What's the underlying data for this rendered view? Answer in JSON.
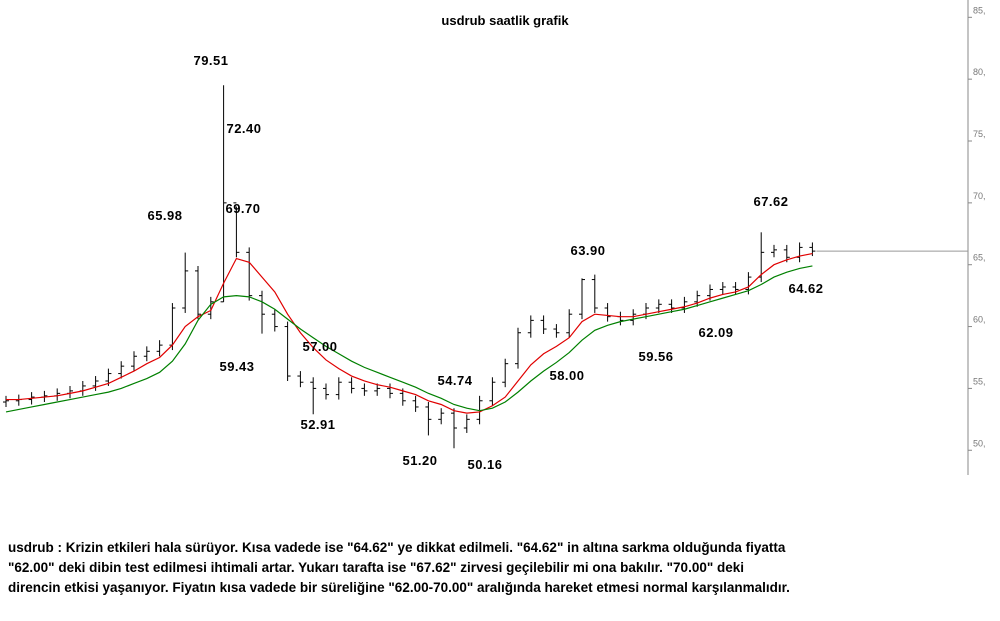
{
  "chart_data": {
    "type": "ohlc",
    "title": "usdrub saatlik grafik",
    "open": [
      53.9,
      54.0,
      54.1,
      54.3,
      54.4,
      54.6,
      54.8,
      55.2,
      55.6,
      56.2,
      56.8,
      57.6,
      58.0,
      58.5,
      61.5,
      64.5,
      61.0,
      62.0,
      70.0,
      66.0,
      62.5,
      61.0,
      60.0,
      56.0,
      55.5,
      55.0,
      54.5,
      55.5,
      55.0,
      54.8,
      55.0,
      54.6,
      54.0,
      53.5,
      52.5,
      53.0,
      51.8,
      52.5,
      54.0,
      55.5,
      57.0,
      59.5,
      60.5,
      59.8,
      59.5,
      61.0,
      63.8,
      61.5,
      60.8,
      60.5,
      61.0,
      61.5,
      61.8,
      61.5,
      62.0,
      62.5,
      63.0,
      63.2,
      63.0,
      64.0,
      66.0,
      66.2,
      65.6,
      66.4
    ],
    "high": [
      54.4,
      54.5,
      54.7,
      54.8,
      55.0,
      55.2,
      55.6,
      56.0,
      56.6,
      57.2,
      58.0,
      58.4,
      58.9,
      61.9,
      65.98,
      64.9,
      62.4,
      79.51,
      69.7,
      66.4,
      62.9,
      61.4,
      60.4,
      56.4,
      55.9,
      55.4,
      55.9,
      55.9,
      55.4,
      55.4,
      55.4,
      55.0,
      54.4,
      53.9,
      53.4,
      53.4,
      52.9,
      54.4,
      55.9,
      57.4,
      59.9,
      60.9,
      60.9,
      60.2,
      61.4,
      63.9,
      64.2,
      61.9,
      61.2,
      61.4,
      61.9,
      62.2,
      62.2,
      62.4,
      62.9,
      63.4,
      63.6,
      63.6,
      64.4,
      67.62,
      66.6,
      66.6,
      66.8,
      66.8
    ],
    "low": [
      53.5,
      53.6,
      53.7,
      53.9,
      54.0,
      54.2,
      54.4,
      54.8,
      55.2,
      55.8,
      56.4,
      57.2,
      57.6,
      58.1,
      61.1,
      60.6,
      60.6,
      62.0,
      65.6,
      62.1,
      59.43,
      59.6,
      55.6,
      55.1,
      52.91,
      54.1,
      54.1,
      54.6,
      54.4,
      54.4,
      54.2,
      53.6,
      53.1,
      51.2,
      52.1,
      50.16,
      51.4,
      52.1,
      53.6,
      55.1,
      56.6,
      59.1,
      59.4,
      59.1,
      59.1,
      60.6,
      61.1,
      60.4,
      60.1,
      60.1,
      60.6,
      61.1,
      61.1,
      61.1,
      61.6,
      62.1,
      62.6,
      62.6,
      62.6,
      63.6,
      65.6,
      65.2,
      65.2,
      65.7
    ],
    "close": [
      54.0,
      54.1,
      54.3,
      54.4,
      54.6,
      54.8,
      55.2,
      55.6,
      56.2,
      56.8,
      57.6,
      58.0,
      58.5,
      61.5,
      64.5,
      61.0,
      62.0,
      70.0,
      66.0,
      62.5,
      61.0,
      60.0,
      56.0,
      55.5,
      55.0,
      54.5,
      55.5,
      55.0,
      54.8,
      55.0,
      54.6,
      54.0,
      53.5,
      52.5,
      53.0,
      51.8,
      52.5,
      54.0,
      55.5,
      57.0,
      59.5,
      60.5,
      59.8,
      59.5,
      61.0,
      63.8,
      61.5,
      60.8,
      60.5,
      61.0,
      61.5,
      61.8,
      61.5,
      62.0,
      62.5,
      63.0,
      63.2,
      63.0,
      64.0,
      66.0,
      66.2,
      65.6,
      66.4,
      66.1
    ],
    "bar_color": "#000000",
    "moving_averages": [
      {
        "color": "#e00000",
        "values": [
          54.1,
          54.1,
          54.2,
          54.3,
          54.4,
          54.6,
          54.8,
          55.1,
          55.4,
          55.9,
          56.4,
          57.0,
          57.5,
          58.5,
          60.0,
          60.8,
          61.3,
          63.5,
          65.5,
          65.2,
          64.0,
          62.8,
          61.0,
          59.5,
          58.3,
          57.3,
          56.6,
          56.0,
          55.6,
          55.3,
          55.1,
          54.8,
          54.5,
          54.0,
          53.7,
          53.2,
          53.0,
          53.1,
          53.6,
          54.3,
          55.6,
          56.9,
          57.8,
          58.4,
          59.1,
          60.4,
          61.0,
          60.9,
          60.8,
          60.8,
          61.0,
          61.2,
          61.4,
          61.6,
          61.9,
          62.3,
          62.6,
          62.8,
          63.2,
          64.2,
          65.0,
          65.4,
          65.7,
          65.9
        ]
      },
      {
        "color": "#008000",
        "values": [
          53.1,
          53.3,
          53.5,
          53.7,
          53.9,
          54.1,
          54.3,
          54.5,
          54.7,
          55.0,
          55.4,
          55.8,
          56.3,
          57.2,
          58.6,
          60.5,
          61.8,
          62.4,
          62.5,
          62.4,
          62.0,
          61.4,
          60.6,
          59.8,
          59.1,
          58.4,
          57.8,
          57.2,
          56.7,
          56.3,
          55.9,
          55.5,
          55.1,
          54.6,
          54.2,
          53.7,
          53.4,
          53.2,
          53.4,
          53.9,
          54.7,
          55.6,
          56.4,
          57.1,
          57.9,
          58.9,
          59.7,
          60.1,
          60.4,
          60.6,
          60.8,
          61.0,
          61.2,
          61.4,
          61.7,
          62.0,
          62.3,
          62.6,
          62.9,
          63.4,
          64.0,
          64.4,
          64.7,
          64.9
        ]
      }
    ],
    "last_price": 66.1,
    "last_price_color": "#999999",
    "annotations": [
      "79.51",
      "72.40",
      "65.98",
      "69.70",
      "59.43",
      "57.00",
      "52.91",
      "54.74",
      "51.20",
      "50.16",
      "58.00",
      "63.90",
      "59.56",
      "62.09",
      "67.62",
      "64.62"
    ],
    "ylim": [
      48,
      86.4
    ],
    "yticks": [
      {
        "value": 50,
        "label": "50,"
      },
      {
        "value": 55,
        "label": "55,"
      },
      {
        "value": 60,
        "label": "60,"
      },
      {
        "value": 65,
        "label": "65,"
      },
      {
        "value": 70,
        "label": "70,"
      },
      {
        "value": 75,
        "label": "75,"
      },
      {
        "value": 80,
        "label": "80,"
      },
      {
        "value": 85,
        "label": "85,"
      }
    ]
  },
  "commentary": [
    "usdrub : Krizin etkileri hala sürüyor. Kısa vadede ise \"64.62\" ye dikkat edilmeli. \"64.62\" in altına sarkma olduğunda fiyatta",
    "\"62.00\" deki dibin test edilmesi ihtimali artar. Yukarı tarafta ise \"67.62\" zirvesi geçilebilir mi ona bakılır. \"70.00\" deki",
    "direncin etkisi yaşanıyor. Fiyatın kısa vadede bir süreliğine \"62.00-70.00\" aralığında hareket etmesi normal karşılanmalıdır."
  ]
}
